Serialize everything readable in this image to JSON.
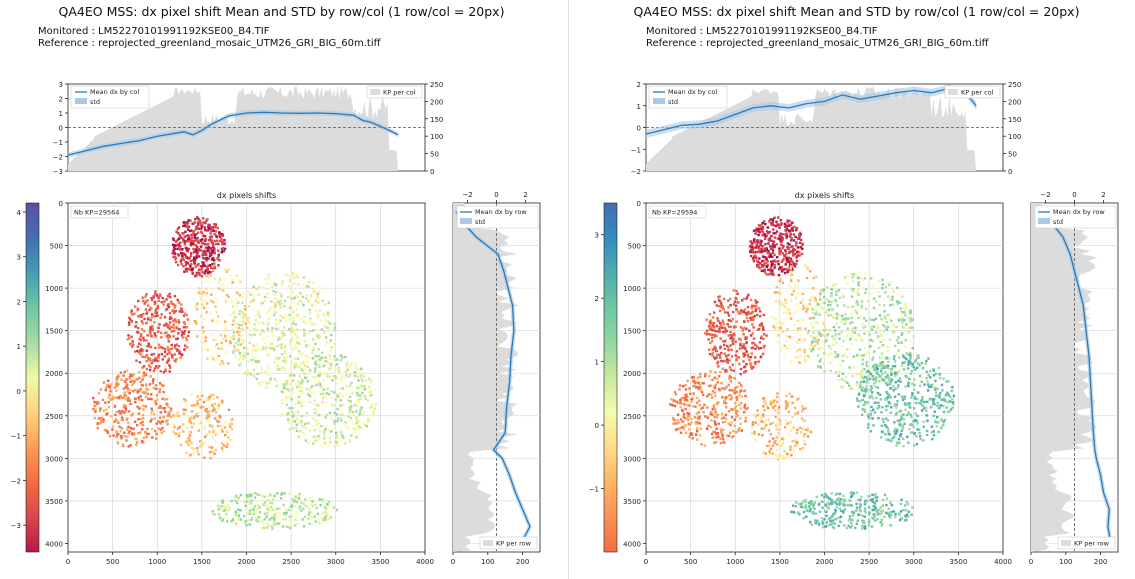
{
  "panels": [
    {
      "title": "QA4EO MSS: dx pixel shift Mean and STD by row/col (1 row/col = 20px)",
      "monitored": "Monitored : LM52270101991192KSE00_B4.TIF",
      "reference": "Reference : reprojected_greenland_mosaic_UTM26_GRI_BIG_60m.tiff",
      "nb_kp": "Nb KP=29564"
    },
    {
      "title": "QA4EO MSS: dx pixel shift Mean and STD by row/col (1 row/col = 20px)",
      "monitored": "Monitored : LM52270101991192KSE00_B4.TIF",
      "reference": "Reference : reprojected_greenland_mosaic_UTM26_GRI_BIG_60m.tiff",
      "nb_kp": "Nb KP=29594"
    }
  ],
  "labels": {
    "main_title": "dx pixels shifts",
    "legend_col_mean": "Mean dx by col",
    "legend_std": "std",
    "legend_kp_col": "KP per col",
    "legend_row_mean": "Mean dx by row",
    "legend_kp_row": "KP per row"
  },
  "chart_data": [
    {
      "type": "line",
      "title": "Mean dx by col (panel 1)",
      "x": [
        0,
        200,
        400,
        600,
        800,
        1000,
        1200,
        1300,
        1400,
        1500,
        1600,
        1800,
        2000,
        2200,
        2400,
        2600,
        2800,
        3000,
        3200,
        3300,
        3400,
        3600,
        3700
      ],
      "y": [
        -1.9,
        -1.6,
        -1.3,
        -1.1,
        -0.9,
        -0.6,
        -0.4,
        -0.3,
        -0.5,
        -0.2,
        0.2,
        0.8,
        1.0,
        1.05,
        1.0,
        0.98,
        1.0,
        0.95,
        0.85,
        0.5,
        0.35,
        -0.2,
        -0.5
      ],
      "xlim": [
        0,
        4000
      ],
      "ylim": [
        -3,
        3
      ],
      "y2lim": [
        0,
        250
      ],
      "y_ticks": [
        "3",
        "2",
        "1",
        "0",
        "−1",
        "−2",
        "−3"
      ],
      "y2_ticks": [
        "250",
        "200",
        "150",
        "100",
        "50",
        "0"
      ]
    },
    {
      "type": "line",
      "title": "Mean dx by col (panel 2)",
      "x": [
        0,
        200,
        400,
        600,
        800,
        1000,
        1200,
        1400,
        1600,
        1800,
        2000,
        2200,
        2400,
        2600,
        2800,
        3000,
        3200,
        3400,
        3500,
        3600,
        3700
      ],
      "y": [
        -0.3,
        -0.1,
        0.1,
        0.15,
        0.3,
        0.6,
        0.9,
        1.0,
        0.9,
        1.1,
        1.2,
        1.5,
        1.3,
        1.45,
        1.6,
        1.7,
        1.6,
        1.8,
        1.65,
        1.5,
        1.0
      ],
      "xlim": [
        0,
        4000
      ],
      "ylim": [
        -2,
        2
      ],
      "y2lim": [
        0,
        250
      ],
      "y_ticks": [
        "2",
        "1",
        "0",
        "−1",
        "−2"
      ],
      "y2_ticks": [
        "250",
        "200",
        "150",
        "100",
        "50",
        "0"
      ]
    },
    {
      "type": "heatmap",
      "title": "dx pixels shifts",
      "xlim": [
        0,
        4000
      ],
      "ylim": [
        4100,
        0
      ],
      "x_ticks": [
        "0",
        "500",
        "1000",
        "1500",
        "2000",
        "2500",
        "3000",
        "3500",
        "4000"
      ],
      "y_ticks": [
        "0",
        "500",
        "1000",
        "1500",
        "2000",
        "2500",
        "3000",
        "3500",
        "4000"
      ],
      "colorbar_ticks_panel1": [
        "4",
        "3",
        "2",
        "1",
        "0",
        "−1",
        "−2",
        "−3"
      ],
      "colorbar_ticks_panel2": [
        "3",
        "2",
        "1",
        "0",
        "−1"
      ]
    },
    {
      "type": "line",
      "title": "Mean dx by row",
      "top_ticks": [
        "−2",
        "0",
        "2"
      ],
      "bottom_ticks": [
        "0",
        "100",
        "200"
      ],
      "rows": [
        100,
        250,
        400,
        600,
        800,
        1000,
        1200,
        1500,
        1800,
        2100,
        2400,
        2700,
        2900,
        3000,
        3200,
        3400,
        3600,
        3800,
        4000
      ],
      "panel1_dx": [
        -2.8,
        -2.2,
        -1.4,
        0.1,
        0.5,
        0.8,
        1.1,
        1.2,
        1.0,
        0.9,
        0.7,
        0.6,
        -0.2,
        0.4,
        0.9,
        1.3,
        1.8,
        2.3,
        1.7
      ],
      "panel2_dx": [
        -2.5,
        -1.5,
        -0.8,
        -0.3,
        0.0,
        0.3,
        0.6,
        0.8,
        1.0,
        1.1,
        1.2,
        1.3,
        1.4,
        1.5,
        1.8,
        2.0,
        2.4,
        2.3,
        2.5
      ]
    }
  ]
}
